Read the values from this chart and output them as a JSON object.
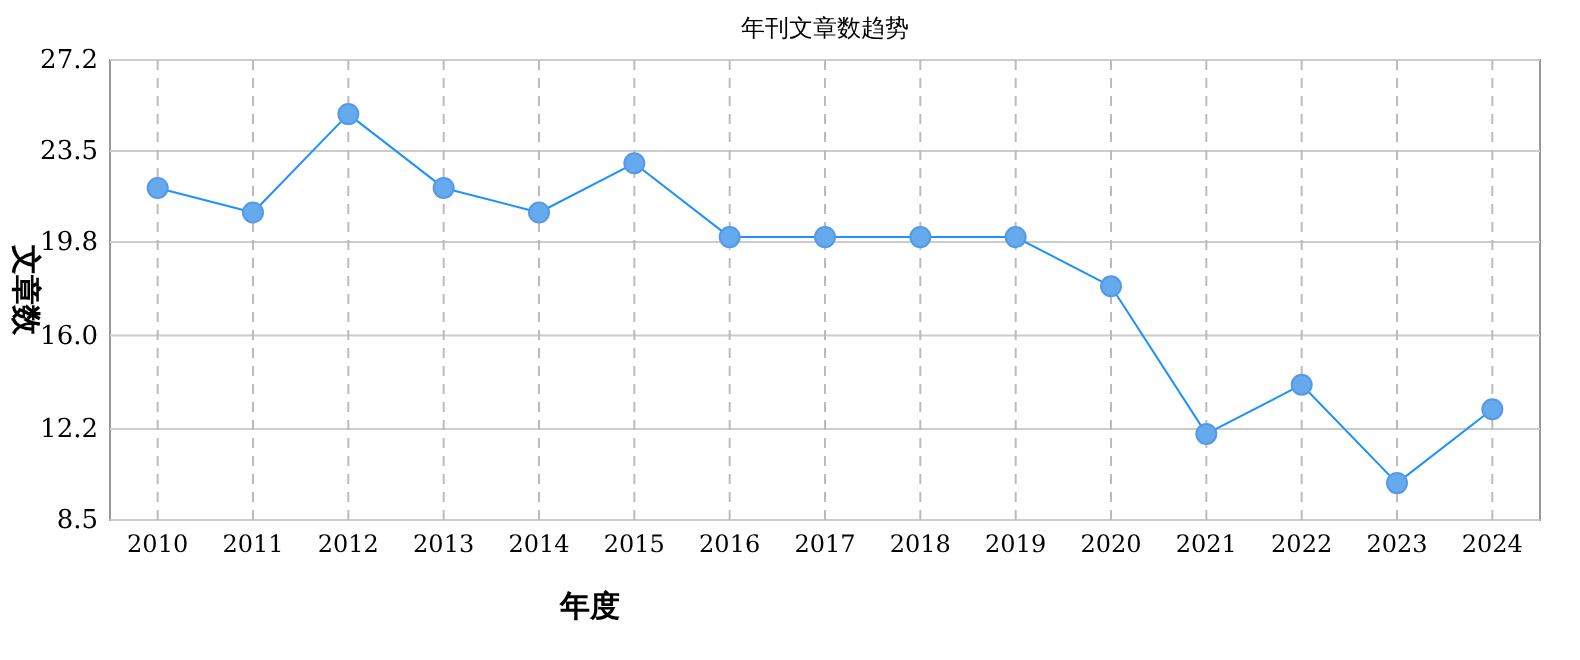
{
  "chart_data": {
    "type": "line",
    "title": "年刊文章数趋势",
    "xlabel": "年度",
    "ylabel": "文章数",
    "categories": [
      "2010",
      "2011",
      "2012",
      "2013",
      "2014",
      "2015",
      "2016",
      "2017",
      "2018",
      "2019",
      "2020",
      "2021",
      "2022",
      "2023",
      "2024"
    ],
    "series": [
      {
        "color": "#1e90ff",
        "values": [
          22,
          21,
          25,
          22,
          21,
          23,
          20,
          20,
          20,
          20,
          18,
          12,
          14,
          10,
          13
        ]
      }
    ],
    "ylim": [
      8.5,
      27.2
    ],
    "yticks": [
      8.5,
      12.2,
      {
        "value": 16,
        "label": "16.0"
      },
      19.8,
      23.5,
      27.2
    ],
    "grid": true,
    "marker": "circle",
    "line_style": "solid"
  }
}
